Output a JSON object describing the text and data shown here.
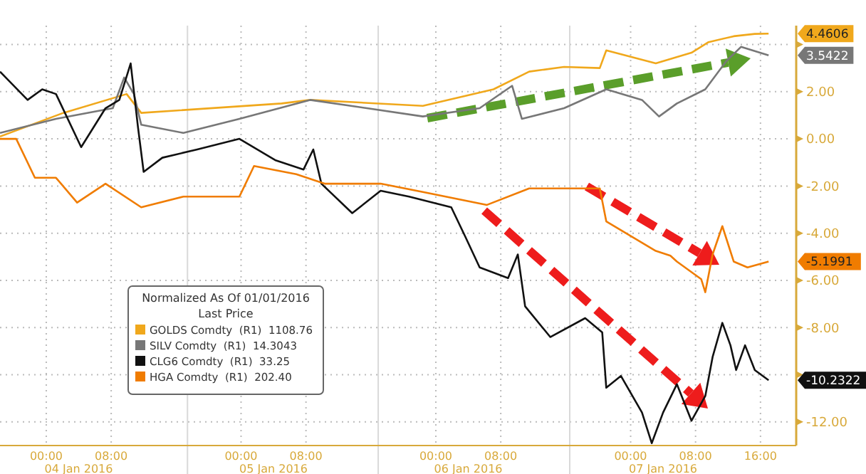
{
  "chart_data": {
    "type": "line",
    "legend_title": "Normalized As Of 01/01/2016\nLast Price",
    "legend": "bottom left",
    "grid": true,
    "xlim": [
      "2016-01-03T18:18",
      "2016-01-07T19:42"
    ],
    "ylim": [
      -13,
      4.8
    ],
    "xticks": [
      {
        "value": "2016-01-04T00:00",
        "label": "00:00"
      },
      {
        "value": "2016-01-04T08:00",
        "label": "08:00"
      },
      {
        "value": "2016-01-05T00:00",
        "label": "00:00"
      },
      {
        "value": "2016-01-05T08:00",
        "label": "08:00"
      },
      {
        "value": "2016-01-06T00:00",
        "label": "00:00"
      },
      {
        "value": "2016-01-06T08:00",
        "label": "08:00"
      },
      {
        "value": "2016-01-07T00:00",
        "label": "00:00"
      },
      {
        "value": "2016-01-07T08:00",
        "label": "08:00"
      },
      {
        "value": "2016-01-07T16:00",
        "label": "16:00"
      }
    ],
    "yticks": [
      {
        "value": 4,
        "label": null
      },
      {
        "value": 2,
        "label": "2.00"
      },
      {
        "value": 0,
        "label": "0.00"
      },
      {
        "value": -2,
        "label": "-2.00"
      },
      {
        "value": -4,
        "label": "-4.00"
      },
      {
        "value": -6,
        "label": "-6.00"
      },
      {
        "value": -8,
        "label": "-8.00"
      },
      {
        "value": -10,
        "label": null
      },
      {
        "value": -12,
        "label": "-12.00"
      }
    ],
    "ref_lines": [
      {
        "axis": "x",
        "value": "2016-01-04T17:24",
        "color": "#d9d9d9"
      },
      {
        "axis": "x",
        "value": "2016-01-05T16:54",
        "color": "#d9d9d9"
      },
      {
        "axis": "x",
        "value": "2016-01-06T16:30",
        "color": "#d9d9d9"
      }
    ],
    "series": [
      {
        "name": "GOLDS Comdty  (R1)  1108.76",
        "color": "#f0a81c",
        "x": [
          "2016-01-03T18:18",
          "2016-01-04T02:06",
          "2016-01-04T09:54",
          "2016-01-04T11:42",
          "2016-01-05T05:00",
          "2016-01-05T08:30",
          "2016-01-05T22:24",
          "2016-01-06T07:06",
          "2016-01-06T11:30",
          "2016-01-06T15:48",
          "2016-01-06T20:12",
          "2016-01-06T21:00",
          "2016-01-07T03:06",
          "2016-01-07T07:30",
          "2016-01-07T09:36",
          "2016-01-07T12:42",
          "2016-01-07T15:18",
          "2016-01-07T17:00"
        ],
        "values": [
          0.1,
          1.1,
          1.9,
          1.1,
          1.5,
          1.65,
          1.4,
          2.1,
          2.85,
          3.05,
          3.0,
          3.75,
          3.2,
          3.65,
          4.1,
          4.35,
          4.45,
          4.46
        ]
      },
      {
        "name": "SILV Comdty  (R1)  14.3043",
        "color": "#777777",
        "x": [
          "2016-01-03T18:18",
          "2016-01-04T01:12",
          "2016-01-04T08:12",
          "2016-01-04T09:36",
          "2016-01-04T10:48",
          "2016-01-04T11:42",
          "2016-01-04T16:54",
          "2016-01-04T23:48",
          "2016-01-05T08:30",
          "2016-01-05T15:30",
          "2016-01-05T22:24",
          "2016-01-06T05:24",
          "2016-01-06T09:24",
          "2016-01-06T10:36",
          "2016-01-06T15:48",
          "2016-01-06T21:00",
          "2016-01-07T01:24",
          "2016-01-07T03:30",
          "2016-01-07T05:42",
          "2016-01-07T09:12",
          "2016-01-07T11:48",
          "2016-01-07T13:36",
          "2016-01-07T17:00"
        ],
        "values": [
          0.25,
          0.85,
          1.3,
          2.6,
          1.9,
          0.6,
          0.25,
          0.85,
          1.65,
          1.3,
          0.95,
          1.3,
          2.25,
          0.85,
          1.3,
          2.1,
          1.65,
          0.95,
          1.5,
          2.1,
          3.3,
          3.9,
          3.54
        ]
      },
      {
        "name": "CLG6 Comdty  (R1)  33.25",
        "color": "#111111",
        "x": [
          "2016-01-03T18:18",
          "2016-01-03T21:42",
          "2016-01-03T23:30",
          "2016-01-04T01:12",
          "2016-01-04T04:18",
          "2016-01-04T07:18",
          "2016-01-04T09:00",
          "2016-01-04T10:24",
          "2016-01-04T11:18",
          "2016-01-04T12:00",
          "2016-01-04T14:18",
          "2016-01-04T18:36",
          "2016-01-04T23:48",
          "2016-01-05T04:12",
          "2016-01-05T07:42",
          "2016-01-05T08:54",
          "2016-01-05T09:54",
          "2016-01-05T13:42",
          "2016-01-05T17:12",
          "2016-01-05T20:42",
          "2016-01-06T01:54",
          "2016-01-06T03:42",
          "2016-01-06T05:24",
          "2016-01-06T08:54",
          "2016-01-06T10:06",
          "2016-01-06T11:00",
          "2016-01-06T14:06",
          "2016-01-06T18:24",
          "2016-01-06T20:30",
          "2016-01-06T21:00",
          "2016-01-06T22:48",
          "2016-01-07T01:24",
          "2016-01-07T02:36",
          "2016-01-07T04:00",
          "2016-01-07T05:42",
          "2016-01-07T07:30",
          "2016-01-07T09:12",
          "2016-01-07T10:06",
          "2016-01-07T11:18",
          "2016-01-07T12:18",
          "2016-01-07T13:00",
          "2016-01-07T14:06",
          "2016-01-07T15:18",
          "2016-01-07T17:00"
        ],
        "values": [
          2.85,
          1.65,
          2.1,
          1.9,
          -0.35,
          1.3,
          1.65,
          3.2,
          0.5,
          -1.4,
          -0.8,
          -0.45,
          0,
          -0.9,
          -1.3,
          -0.45,
          -1.9,
          -3.15,
          -2.2,
          -2.45,
          -2.9,
          -4.2,
          -5.45,
          -5.9,
          -4.9,
          -7.1,
          -8.4,
          -7.6,
          -8.2,
          -10.55,
          -10.05,
          -11.6,
          -12.9,
          -11.6,
          -10.4,
          -11.95,
          -10.9,
          -9.25,
          -7.8,
          -8.75,
          -9.8,
          -8.75,
          -9.8,
          -10.23
        ]
      },
      {
        "name": "HGA Comdty  (R1)  202.40",
        "color": "#f07c00",
        "x": [
          "2016-01-03T18:18",
          "2016-01-03T20:18",
          "2016-01-03T22:36",
          "2016-01-04T01:12",
          "2016-01-04T03:48",
          "2016-01-04T07:18",
          "2016-01-04T11:42",
          "2016-01-04T16:54",
          "2016-01-04T23:48",
          "2016-01-05T01:36",
          "2016-01-05T06:48",
          "2016-01-05T10:18",
          "2016-01-05T17:12",
          "2016-01-05T22:24",
          "2016-01-06T06:18",
          "2016-01-06T11:30",
          "2016-01-06T17:36",
          "2016-01-06T20:12",
          "2016-01-06T21:00",
          "2016-01-07T03:06",
          "2016-01-07T04:54",
          "2016-01-07T05:42",
          "2016-01-07T08:42",
          "2016-01-07T09:12",
          "2016-01-07T10:06",
          "2016-01-07T11:18",
          "2016-01-07T12:42",
          "2016-01-07T14:24",
          "2016-01-07T17:00"
        ],
        "values": [
          0,
          0,
          -1.65,
          -1.65,
          -2.7,
          -1.9,
          -2.9,
          -2.45,
          -2.45,
          -1.15,
          -1.5,
          -1.9,
          -1.9,
          -2.25,
          -2.8,
          -2.1,
          -2.1,
          -2.1,
          -3.5,
          -4.75,
          -4.95,
          -5.2,
          -5.95,
          -6.5,
          -4.9,
          -3.7,
          -5.2,
          -5.45,
          -5.2
        ]
      }
    ],
    "annotations": [
      "4.4606",
      "3.5422",
      "-10.2322",
      "-5.1991",
      "04 Jan 2016",
      "05 Jan 2016",
      "06 Jan 2016",
      "07 Jan 2016"
    ]
  }
}
